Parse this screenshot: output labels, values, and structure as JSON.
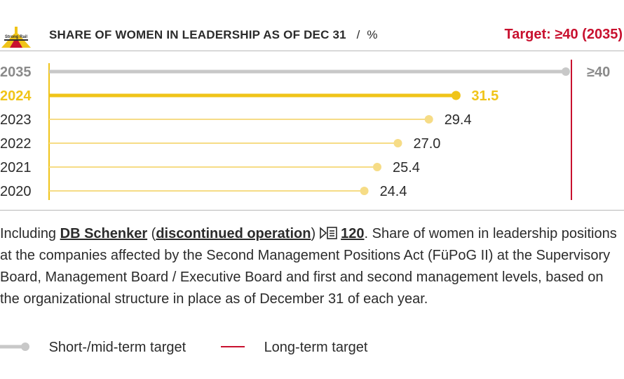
{
  "header": {
    "logo_text": "Strong Rail",
    "title": "SHARE OF WOMEN IN LEADERSHIP AS OF DEC 31",
    "title_separator": "/",
    "unit": "%",
    "target_label": "Target: ≥40 (2035)"
  },
  "colors": {
    "highlight": "#f0c419",
    "past": "#f6dc86",
    "target_grey": "#c8c8c8",
    "long_term_red": "#c8102e",
    "text": "#2b2b2b"
  },
  "chart_data": {
    "type": "bar",
    "orientation": "horizontal",
    "style": "lollipop",
    "categories": [
      "2035",
      "2024",
      "2023",
      "2022",
      "2021",
      "2020"
    ],
    "values": [
      40,
      31.5,
      29.4,
      27.0,
      25.4,
      24.4
    ],
    "value_labels": [
      "≥40",
      "31.5",
      "29.4",
      "27.0",
      "25.4",
      "24.4"
    ],
    "long_term_target": 40,
    "xlim": [
      0,
      40
    ],
    "grid": false
  },
  "note": {
    "text_before": "Including ",
    "link1": "DB Schenker",
    "text_paren_open": " (",
    "link2": "discontinued operation",
    "text_paren_close": ")",
    "page_ref": "120",
    "text_after": ". Share of women in leadership positions at the companies affected by the Second Management Positions Act (FüPoG II) at the Supervisory Board, Management Board / Executive Board and first and second management levels, based on the organizational structure in place as of December 31 of each year."
  },
  "legend": {
    "short_mid_label": "Short-/mid-term target",
    "long_term_label": "Long-term target"
  }
}
